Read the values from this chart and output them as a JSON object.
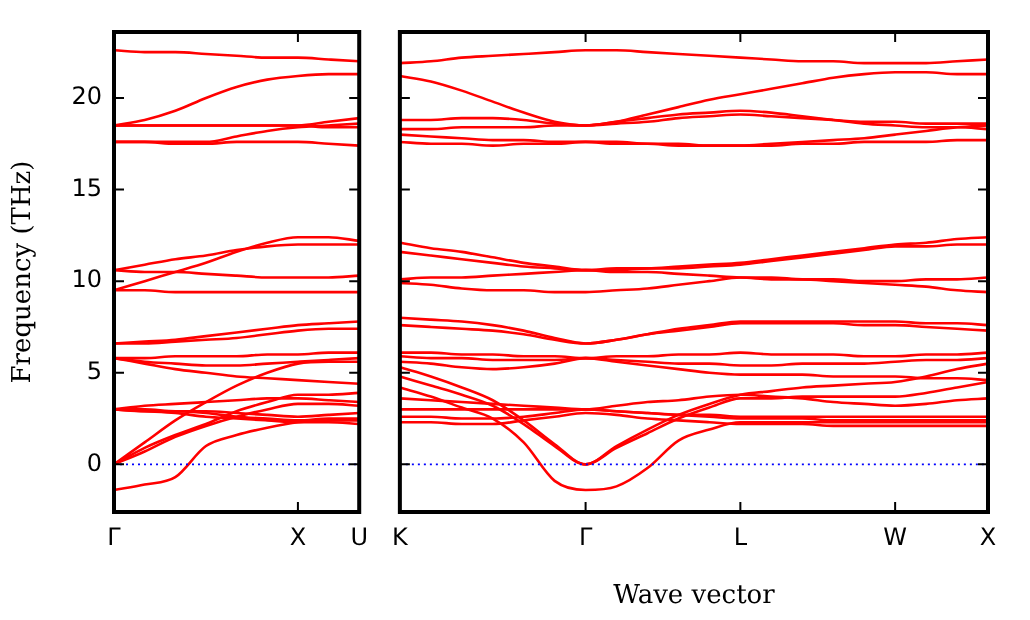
{
  "chart_data": [
    {
      "type": "line",
      "ylabel": "Frequency (THz)",
      "categories": [
        "Γ",
        null,
        null,
        null,
        null,
        null,
        "X",
        null,
        "U"
      ],
      "ylim": [
        -2.6,
        23.6
      ],
      "yticks": [
        0,
        5,
        10,
        15,
        20
      ],
      "grid": false,
      "marker": "none",
      "line_style": "solid",
      "ref_lines": [
        {
          "axis": "y",
          "value": 0,
          "color": "#0000ff",
          "line_style": "dotted"
        }
      ],
      "series": [
        {
          "color": "#ff0000",
          "values": [
            22.6,
            22.5,
            22.5,
            22.4,
            22.3,
            22.2,
            22.2,
            22.1,
            22.0
          ]
        },
        {
          "color": "#ff0000",
          "values": [
            18.5,
            18.8,
            19.3,
            20.0,
            20.6,
            21.0,
            21.2,
            21.3,
            21.3
          ]
        },
        {
          "color": "#ff0000",
          "values": [
            18.5,
            18.5,
            18.5,
            18.5,
            18.5,
            18.5,
            18.5,
            18.7,
            18.9
          ]
        },
        {
          "color": "#ff0000",
          "values": [
            18.5,
            18.5,
            18.5,
            18.5,
            18.5,
            18.5,
            18.5,
            18.4,
            18.4
          ]
        },
        {
          "color": "#ff0000",
          "values": [
            17.6,
            17.6,
            17.6,
            17.6,
            17.9,
            18.2,
            18.4,
            18.5,
            18.6
          ]
        },
        {
          "color": "#ff0000",
          "values": [
            17.6,
            17.6,
            17.5,
            17.5,
            17.6,
            17.6,
            17.6,
            17.5,
            17.4
          ]
        },
        {
          "color": "#ff0000",
          "values": [
            9.5,
            10.0,
            10.5,
            11.0,
            11.6,
            12.1,
            12.4,
            12.4,
            12.2
          ]
        },
        {
          "color": "#ff0000",
          "values": [
            10.6,
            10.9,
            11.2,
            11.4,
            11.7,
            11.9,
            12.0,
            12.0,
            12.0
          ]
        },
        {
          "color": "#ff0000",
          "values": [
            10.6,
            10.5,
            10.5,
            10.4,
            10.3,
            10.2,
            10.2,
            10.2,
            10.3
          ]
        },
        {
          "color": "#ff0000",
          "values": [
            9.5,
            9.5,
            9.4,
            9.4,
            9.4,
            9.4,
            9.4,
            9.4,
            9.4
          ]
        },
        {
          "color": "#ff0000",
          "values": [
            6.6,
            6.7,
            6.8,
            7.0,
            7.2,
            7.4,
            7.6,
            7.7,
            7.8
          ]
        },
        {
          "color": "#ff0000",
          "values": [
            6.6,
            6.6,
            6.7,
            6.8,
            6.9,
            7.1,
            7.3,
            7.4,
            7.4
          ]
        },
        {
          "color": "#ff0000",
          "values": [
            5.8,
            5.8,
            5.9,
            5.9,
            5.9,
            6.0,
            6.0,
            6.1,
            6.1
          ]
        },
        {
          "color": "#ff0000",
          "values": [
            5.8,
            5.6,
            5.5,
            5.4,
            5.4,
            5.5,
            5.6,
            5.7,
            5.8
          ]
        },
        {
          "color": "#ff0000",
          "values": [
            5.8,
            5.5,
            5.2,
            5.0,
            4.8,
            4.7,
            4.6,
            4.5,
            4.4
          ]
        },
        {
          "color": "#ff0000",
          "values": [
            3.0,
            3.2,
            3.3,
            3.4,
            3.5,
            3.6,
            3.6,
            3.5,
            3.4
          ]
        },
        {
          "color": "#ff0000",
          "values": [
            3.0,
            3.0,
            2.9,
            2.9,
            2.8,
            2.7,
            2.6,
            2.7,
            2.8
          ]
        },
        {
          "color": "#ff0000",
          "values": [
            3.0,
            2.9,
            2.9,
            2.8,
            2.6,
            2.5,
            2.4,
            2.5,
            2.5
          ]
        },
        {
          "color": "#ff0000",
          "values": [
            3.0,
            2.9,
            2.8,
            2.6,
            2.5,
            2.4,
            2.3,
            2.3,
            2.2
          ]
        },
        {
          "color": "#ff0000",
          "values": [
            0,
            1.2,
            2.4,
            3.4,
            4.3,
            5.0,
            5.5,
            5.6,
            5.6
          ]
        },
        {
          "color": "#ff0000",
          "values": [
            0,
            0.9,
            1.6,
            2.2,
            2.9,
            3.4,
            3.8,
            3.8,
            3.9
          ]
        },
        {
          "color": "#ff0000",
          "values": [
            -1.4,
            -1.1,
            -0.7,
            1.0,
            1.6,
            2.0,
            2.3,
            2.4,
            2.4
          ]
        },
        {
          "color": "#ff0000",
          "values": [
            0,
            0.7,
            1.5,
            2.1,
            2.6,
            3.0,
            3.3,
            3.3,
            3.2
          ]
        }
      ]
    },
    {
      "type": "line",
      "xlabel": "Wave vector",
      "categories": [
        "K",
        null,
        null,
        null,
        null,
        null,
        "Γ",
        null,
        null,
        null,
        null,
        "L",
        null,
        null,
        null,
        null,
        "W",
        null,
        null,
        "X"
      ],
      "ylim": [
        -2.6,
        23.6
      ],
      "yticks": [
        0,
        5,
        10,
        15,
        20
      ],
      "tick_labels": "x",
      "grid": false,
      "marker": "none",
      "line_style": "solid",
      "ref_lines": [
        {
          "axis": "y",
          "value": 0,
          "color": "#0000ff",
          "line_style": "dotted"
        }
      ],
      "series": [
        {
          "color": "#ff0000",
          "values": [
            21.9,
            22.0,
            22.2,
            22.3,
            22.4,
            22.5,
            22.6,
            22.6,
            22.5,
            22.4,
            22.3,
            22.2,
            22.1,
            22.0,
            22.0,
            21.9,
            21.9,
            21.9,
            22.0,
            22.1
          ]
        },
        {
          "color": "#ff0000",
          "values": [
            21.2,
            20.9,
            20.4,
            19.8,
            19.2,
            18.7,
            18.5,
            18.7,
            19.1,
            19.5,
            19.9,
            20.2,
            20.5,
            20.8,
            21.1,
            21.3,
            21.4,
            21.4,
            21.3,
            21.3
          ]
        },
        {
          "color": "#ff0000",
          "values": [
            18.8,
            18.8,
            18.9,
            18.9,
            18.8,
            18.6,
            18.5,
            18.7,
            18.9,
            19.1,
            19.2,
            19.3,
            19.2,
            19.0,
            18.8,
            18.6,
            18.5,
            18.4,
            18.4,
            18.3
          ]
        },
        {
          "color": "#ff0000",
          "values": [
            18.3,
            18.3,
            18.4,
            18.4,
            18.4,
            18.5,
            18.5,
            18.6,
            18.7,
            18.9,
            19.0,
            19.1,
            19.0,
            18.9,
            18.8,
            18.7,
            18.7,
            18.6,
            18.6,
            18.6
          ]
        },
        {
          "color": "#ff0000",
          "values": [
            18.0,
            17.9,
            17.8,
            17.7,
            17.7,
            17.6,
            17.6,
            17.5,
            17.5,
            17.4,
            17.4,
            17.4,
            17.4,
            17.5,
            17.5,
            17.6,
            17.6,
            17.6,
            17.7,
            17.7
          ]
        },
        {
          "color": "#ff0000",
          "values": [
            17.6,
            17.5,
            17.5,
            17.4,
            17.5,
            17.5,
            17.6,
            17.6,
            17.5,
            17.5,
            17.4,
            17.4,
            17.5,
            17.6,
            17.7,
            17.8,
            18.0,
            18.2,
            18.4,
            18.5
          ]
        },
        {
          "color": "#ff0000",
          "values": [
            12.1,
            11.8,
            11.6,
            11.3,
            11.0,
            10.8,
            10.6,
            10.7,
            10.7,
            10.8,
            10.9,
            11.0,
            11.2,
            11.4,
            11.6,
            11.8,
            12.0,
            12.1,
            12.3,
            12.4
          ]
        },
        {
          "color": "#ff0000",
          "values": [
            11.6,
            11.4,
            11.2,
            11.0,
            10.8,
            10.7,
            10.6,
            10.6,
            10.7,
            10.7,
            10.8,
            10.9,
            11.1,
            11.3,
            11.5,
            11.7,
            11.9,
            11.9,
            12.0,
            12.0
          ]
        },
        {
          "color": "#ff0000",
          "values": [
            10.1,
            10.2,
            10.2,
            10.3,
            10.4,
            10.5,
            10.6,
            10.5,
            10.5,
            10.4,
            10.3,
            10.2,
            10.2,
            10.1,
            10.1,
            10.0,
            10.0,
            10.1,
            10.1,
            10.2
          ]
        },
        {
          "color": "#ff0000",
          "values": [
            9.9,
            9.8,
            9.6,
            9.5,
            9.5,
            9.4,
            9.4,
            9.5,
            9.6,
            9.8,
            10.0,
            10.2,
            10.1,
            10.1,
            10.0,
            9.9,
            9.8,
            9.7,
            9.5,
            9.4
          ]
        },
        {
          "color": "#ff0000",
          "values": [
            8.0,
            7.9,
            7.8,
            7.6,
            7.3,
            6.9,
            6.6,
            6.8,
            7.1,
            7.4,
            7.6,
            7.8,
            7.8,
            7.8,
            7.8,
            7.8,
            7.8,
            7.7,
            7.7,
            7.6
          ]
        },
        {
          "color": "#ff0000",
          "values": [
            7.6,
            7.5,
            7.4,
            7.3,
            7.1,
            6.8,
            6.6,
            6.8,
            7.1,
            7.3,
            7.5,
            7.7,
            7.7,
            7.7,
            7.7,
            7.6,
            7.6,
            7.5,
            7.4,
            7.3
          ]
        },
        {
          "color": "#ff0000",
          "values": [
            6.1,
            6.1,
            6.0,
            6.0,
            5.9,
            5.9,
            5.8,
            5.9,
            5.9,
            6.0,
            6.0,
            6.1,
            6.0,
            6.0,
            6.0,
            5.9,
            5.9,
            6.0,
            6.0,
            6.1
          ]
        },
        {
          "color": "#ff0000",
          "values": [
            5.9,
            5.8,
            5.8,
            5.7,
            5.7,
            5.7,
            5.8,
            5.7,
            5.6,
            5.5,
            5.5,
            5.4,
            5.4,
            5.5,
            5.5,
            5.5,
            5.6,
            5.7,
            5.7,
            5.8
          ]
        },
        {
          "color": "#ff0000",
          "values": [
            5.6,
            5.5,
            5.3,
            5.2,
            5.3,
            5.5,
            5.8,
            5.6,
            5.4,
            5.2,
            5.0,
            4.9,
            4.9,
            4.9,
            4.8,
            4.8,
            4.8,
            4.7,
            4.7,
            4.6
          ]
        },
        {
          "color": "#ff0000",
          "values": [
            5.3,
            4.8,
            4.2,
            3.5,
            2.4,
            1.1,
            0,
            1.0,
            1.9,
            2.7,
            3.3,
            3.8,
            4.0,
            4.2,
            4.3,
            4.4,
            4.5,
            4.8,
            5.2,
            5.5
          ]
        },
        {
          "color": "#ff0000",
          "values": [
            4.8,
            4.3,
            3.8,
            3.2,
            2.2,
            1.0,
            0,
            0.9,
            1.7,
            2.5,
            3.1,
            3.6,
            3.6,
            3.7,
            3.7,
            3.7,
            3.7,
            3.9,
            4.2,
            4.5
          ]
        },
        {
          "color": "#ff0000",
          "values": [
            3.6,
            3.5,
            3.4,
            3.3,
            3.2,
            3.1,
            3.0,
            3.2,
            3.4,
            3.5,
            3.7,
            3.8,
            3.7,
            3.6,
            3.4,
            3.3,
            3.2,
            3.3,
            3.5,
            3.6
          ]
        },
        {
          "color": "#ff0000",
          "values": [
            3.0,
            3.0,
            3.0,
            3.0,
            3.0,
            3.0,
            3.0,
            2.9,
            2.8,
            2.7,
            2.7,
            2.6,
            2.6,
            2.6,
            2.6,
            2.6,
            2.6,
            2.6,
            2.6,
            2.6
          ]
        },
        {
          "color": "#ff0000",
          "values": [
            2.6,
            2.6,
            2.5,
            2.5,
            2.6,
            2.8,
            3.0,
            2.9,
            2.8,
            2.7,
            2.6,
            2.5,
            2.5,
            2.5,
            2.4,
            2.4,
            2.4,
            2.4,
            2.4,
            2.4
          ]
        },
        {
          "color": "#ff0000",
          "values": [
            2.3,
            2.3,
            2.2,
            2.2,
            2.4,
            2.6,
            2.8,
            2.7,
            2.5,
            2.4,
            2.3,
            2.2,
            2.2,
            2.2,
            2.1,
            2.1,
            2.1,
            2.1,
            2.1,
            2.1
          ]
        },
        {
          "color": "#ff0000",
          "values": [
            4.2,
            3.7,
            3.1,
            2.5,
            1.2,
            -0.9,
            -1.4,
            -1.2,
            -0.2,
            1.3,
            1.9,
            2.3,
            2.3,
            2.3,
            2.3,
            2.3,
            2.3,
            2.3,
            2.3,
            2.3
          ]
        }
      ]
    }
  ]
}
